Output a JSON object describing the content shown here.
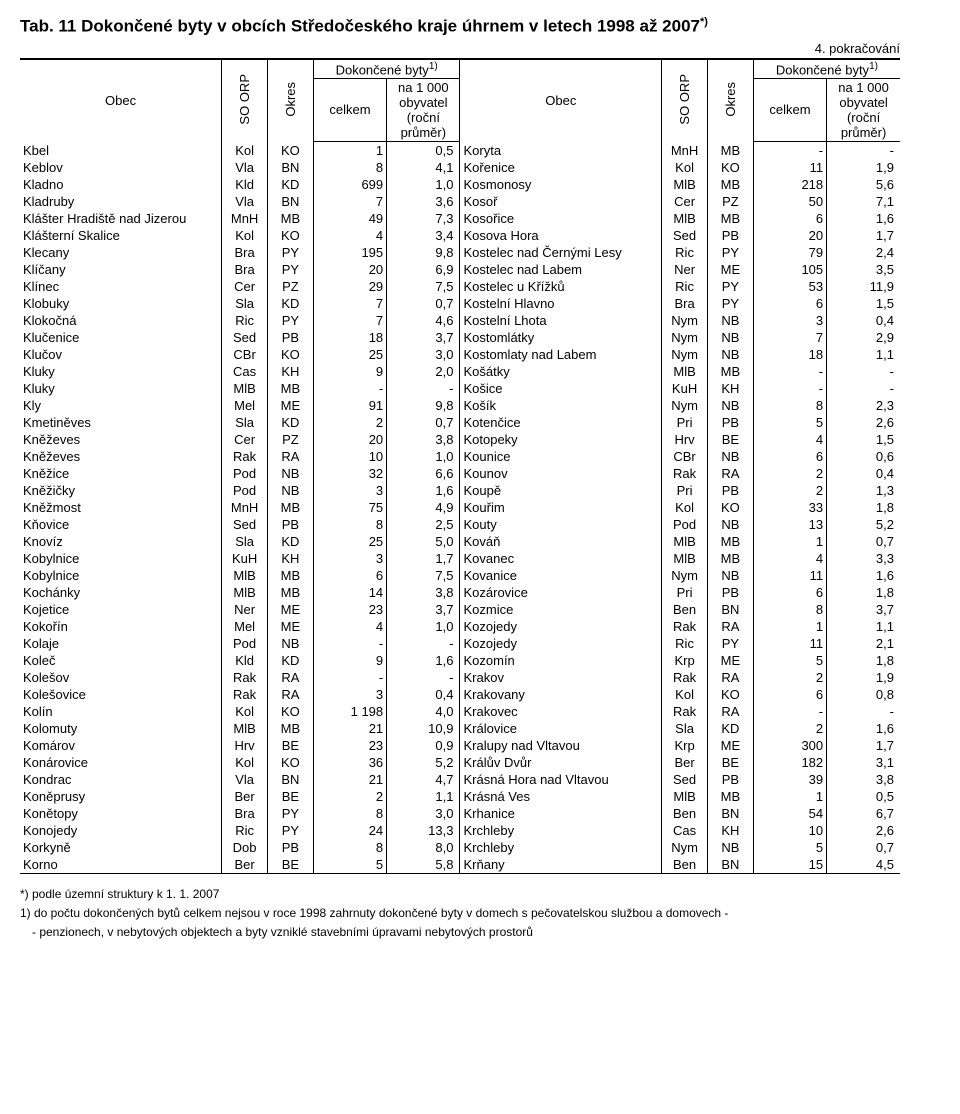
{
  "title": "Tab. 11 Dokončené byty v obcích Středočeského kraje úhrnem v letech 1998 až 2007",
  "title_sup": "*)",
  "continuation": "4. pokračování",
  "headers": {
    "obec": "Obec",
    "so_orp": "SO ORP",
    "okres": "Okres",
    "group": "Dokončené byty",
    "group_sup": "1)",
    "celkem": "celkem",
    "per1000": "na 1 000 obyvatel (roční průměr)"
  },
  "footnotes": {
    "f1": "*) podle územní struktury k 1. 1. 2007",
    "f2a": "1) do počtu dokončených bytů celkem nejsou v roce 1998 zahrnuty dokončené byty v domech s  pečovatelskou službou a domovech -",
    "f2b": "- penzionech, v nebytových objektech a byty vzniklé stavebními úpravami nebytových prostorů"
  },
  "rows": [
    {
      "a": [
        "Kbel",
        "Kol",
        "KO",
        "1",
        "0,5"
      ],
      "b": [
        "Koryta",
        "MnH",
        "MB",
        "-",
        "-"
      ]
    },
    {
      "a": [
        "Keblov",
        "Vla",
        "BN",
        "8",
        "4,1"
      ],
      "b": [
        "Kořenice",
        "Kol",
        "KO",
        "11",
        "1,9"
      ]
    },
    {
      "a": [
        "Kladno",
        "Kld",
        "KD",
        "699",
        "1,0"
      ],
      "b": [
        "Kosmonosy",
        "MlB",
        "MB",
        "218",
        "5,6"
      ]
    },
    {
      "a": [
        "Kladruby",
        "Vla",
        "BN",
        "7",
        "3,6"
      ],
      "b": [
        "Kosoř",
        "Cer",
        "PZ",
        "50",
        "7,1"
      ]
    },
    {
      "a": [
        "Klášter Hradiště nad Jizerou",
        "MnH",
        "MB",
        "49",
        "7,3"
      ],
      "b": [
        "Kosořice",
        "MlB",
        "MB",
        "6",
        "1,6"
      ]
    },
    {
      "a": [
        "Klášterní Skalice",
        "Kol",
        "KO",
        "4",
        "3,4"
      ],
      "b": [
        "Kosova Hora",
        "Sed",
        "PB",
        "20",
        "1,7"
      ]
    },
    {
      "a": [
        "Klecany",
        "Bra",
        "PY",
        "195",
        "9,8"
      ],
      "b": [
        "Kostelec nad Černými Lesy",
        "Ric",
        "PY",
        "79",
        "2,4"
      ]
    },
    {
      "a": [
        "Klíčany",
        "Bra",
        "PY",
        "20",
        "6,9"
      ],
      "b": [
        "Kostelec nad Labem",
        "Ner",
        "ME",
        "105",
        "3,5"
      ]
    },
    {
      "a": [
        "Klínec",
        "Cer",
        "PZ",
        "29",
        "7,5"
      ],
      "b": [
        "Kostelec u Křížků",
        "Ric",
        "PY",
        "53",
        "11,9"
      ]
    },
    {
      "a": [
        "Klobuky",
        "Sla",
        "KD",
        "7",
        "0,7"
      ],
      "b": [
        "Kostelní Hlavno",
        "Bra",
        "PY",
        "6",
        "1,5"
      ]
    },
    {
      "a": [
        "Klokočná",
        "Ric",
        "PY",
        "7",
        "4,6"
      ],
      "b": [
        "Kostelní Lhota",
        "Nym",
        "NB",
        "3",
        "0,4"
      ]
    },
    {
      "a": [
        "Klučenice",
        "Sed",
        "PB",
        "18",
        "3,7"
      ],
      "b": [
        "Kostomlátky",
        "Nym",
        "NB",
        "7",
        "2,9"
      ]
    },
    {
      "a": [
        "Klučov",
        "CBr",
        "KO",
        "25",
        "3,0"
      ],
      "b": [
        "Kostomlaty nad Labem",
        "Nym",
        "NB",
        "18",
        "1,1"
      ]
    },
    {
      "a": [
        "Kluky",
        "Cas",
        "KH",
        "9",
        "2,0"
      ],
      "b": [
        "Košátky",
        "MlB",
        "MB",
        "-",
        "-"
      ]
    },
    {
      "a": [
        "Kluky",
        "MlB",
        "MB",
        "-",
        "-"
      ],
      "b": [
        "Košice",
        "KuH",
        "KH",
        "-",
        "-"
      ]
    },
    {
      "a": [
        "Kly",
        "Mel",
        "ME",
        "91",
        "9,8"
      ],
      "b": [
        "Košík",
        "Nym",
        "NB",
        "8",
        "2,3"
      ]
    },
    {
      "a": [
        "Kmetiněves",
        "Sla",
        "KD",
        "2",
        "0,7"
      ],
      "b": [
        "Kotenčice",
        "Pri",
        "PB",
        "5",
        "2,6"
      ]
    },
    {
      "a": [
        "Kněževes",
        "Cer",
        "PZ",
        "20",
        "3,8"
      ],
      "b": [
        "Kotopeky",
        "Hrv",
        "BE",
        "4",
        "1,5"
      ]
    },
    {
      "a": [
        "Kněževes",
        "Rak",
        "RA",
        "10",
        "1,0"
      ],
      "b": [
        "Kounice",
        "CBr",
        "NB",
        "6",
        "0,6"
      ]
    },
    {
      "a": [
        "Kněžice",
        "Pod",
        "NB",
        "32",
        "6,6"
      ],
      "b": [
        "Kounov",
        "Rak",
        "RA",
        "2",
        "0,4"
      ]
    },
    {
      "a": [
        "Kněžičky",
        "Pod",
        "NB",
        "3",
        "1,6"
      ],
      "b": [
        "Koupě",
        "Pri",
        "PB",
        "2",
        "1,3"
      ]
    },
    {
      "a": [
        "Kněžmost",
        "MnH",
        "MB",
        "75",
        "4,9"
      ],
      "b": [
        "Kouřim",
        "Kol",
        "KO",
        "33",
        "1,8"
      ]
    },
    {
      "a": [
        "Kňovice",
        "Sed",
        "PB",
        "8",
        "2,5"
      ],
      "b": [
        "Kouty",
        "Pod",
        "NB",
        "13",
        "5,2"
      ]
    },
    {
      "a": [
        "Knovíz",
        "Sla",
        "KD",
        "25",
        "5,0"
      ],
      "b": [
        "Kováň",
        "MlB",
        "MB",
        "1",
        "0,7"
      ]
    },
    {
      "a": [
        "Kobylnice",
        "KuH",
        "KH",
        "3",
        "1,7"
      ],
      "b": [
        "Kovanec",
        "MlB",
        "MB",
        "4",
        "3,3"
      ]
    },
    {
      "a": [
        "Kobylnice",
        "MlB",
        "MB",
        "6",
        "7,5"
      ],
      "b": [
        "Kovanice",
        "Nym",
        "NB",
        "11",
        "1,6"
      ]
    },
    {
      "a": [
        "Kochánky",
        "MlB",
        "MB",
        "14",
        "3,8"
      ],
      "b": [
        "Kozárovice",
        "Pri",
        "PB",
        "6",
        "1,8"
      ]
    },
    {
      "a": [
        "Kojetice",
        "Ner",
        "ME",
        "23",
        "3,7"
      ],
      "b": [
        "Kozmice",
        "Ben",
        "BN",
        "8",
        "3,7"
      ]
    },
    {
      "a": [
        "Kokořín",
        "Mel",
        "ME",
        "4",
        "1,0"
      ],
      "b": [
        "Kozojedy",
        "Rak",
        "RA",
        "1",
        "1,1"
      ]
    },
    {
      "a": [
        "Kolaje",
        "Pod",
        "NB",
        "-",
        "-"
      ],
      "b": [
        "Kozojedy",
        "Ric",
        "PY",
        "11",
        "2,1"
      ]
    },
    {
      "a": [
        "Koleč",
        "Kld",
        "KD",
        "9",
        "1,6"
      ],
      "b": [
        "Kozomín",
        "Krp",
        "ME",
        "5",
        "1,8"
      ]
    },
    {
      "a": [
        "Kolešov",
        "Rak",
        "RA",
        "-",
        "-"
      ],
      "b": [
        "Krakov",
        "Rak",
        "RA",
        "2",
        "1,9"
      ]
    },
    {
      "a": [
        "Kolešovice",
        "Rak",
        "RA",
        "3",
        "0,4"
      ],
      "b": [
        "Krakovany",
        "Kol",
        "KO",
        "6",
        "0,8"
      ]
    },
    {
      "a": [
        "Kolín",
        "Kol",
        "KO",
        "1 198",
        "4,0"
      ],
      "b": [
        "Krakovec",
        "Rak",
        "RA",
        "-",
        "-"
      ]
    },
    {
      "a": [
        "Kolomuty",
        "MlB",
        "MB",
        "21",
        "10,9"
      ],
      "b": [
        "Královice",
        "Sla",
        "KD",
        "2",
        "1,6"
      ]
    },
    {
      "a": [
        "Komárov",
        "Hrv",
        "BE",
        "23",
        "0,9"
      ],
      "b": [
        "Kralupy nad Vltavou",
        "Krp",
        "ME",
        "300",
        "1,7"
      ]
    },
    {
      "a": [
        "Konárovice",
        "Kol",
        "KO",
        "36",
        "5,2"
      ],
      "b": [
        "Králův Dvůr",
        "Ber",
        "BE",
        "182",
        "3,1"
      ]
    },
    {
      "a": [
        "Kondrac",
        "Vla",
        "BN",
        "21",
        "4,7"
      ],
      "b": [
        "Krásná Hora nad Vltavou",
        "Sed",
        "PB",
        "39",
        "3,8"
      ]
    },
    {
      "a": [
        "Koněprusy",
        "Ber",
        "BE",
        "2",
        "1,1"
      ],
      "b": [
        "Krásná Ves",
        "MlB",
        "MB",
        "1",
        "0,5"
      ]
    },
    {
      "a": [
        "Konětopy",
        "Bra",
        "PY",
        "8",
        "3,0"
      ],
      "b": [
        "Krhanice",
        "Ben",
        "BN",
        "54",
        "6,7"
      ]
    },
    {
      "a": [
        "Konojedy",
        "Ric",
        "PY",
        "24",
        "13,3"
      ],
      "b": [
        "Krchleby",
        "Cas",
        "KH",
        "10",
        "2,6"
      ]
    },
    {
      "a": [
        "Korkyně",
        "Dob",
        "PB",
        "8",
        "8,0"
      ],
      "b": [
        "Krchleby",
        "Nym",
        "NB",
        "5",
        "0,7"
      ]
    },
    {
      "a": [
        "Korno",
        "Ber",
        "BE",
        "5",
        "5,8"
      ],
      "b": [
        "Krňany",
        "Ben",
        "BN",
        "15",
        "4,5"
      ]
    }
  ],
  "colwidths": {
    "obec": "20%",
    "so": "4.5%",
    "ok": "4.5%",
    "cel": "8%",
    "per": "9%"
  }
}
